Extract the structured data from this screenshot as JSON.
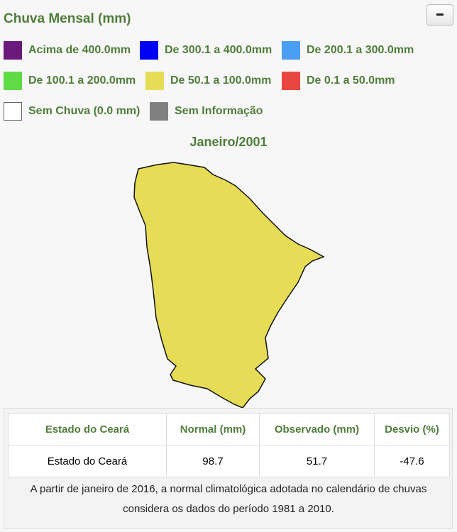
{
  "header": {
    "title": "Chuva Mensal (mm)"
  },
  "legend": [
    {
      "label": "Acima de 400.0mm",
      "color": "#6b1a7c"
    },
    {
      "label": "De 300.1 a 400.0mm",
      "color": "#0000f5"
    },
    {
      "label": "De 200.1 a 300.0mm",
      "color": "#4b9ef3"
    },
    {
      "label": "De 100.1 a 200.0mm",
      "color": "#5fdc45"
    },
    {
      "label": "De 50.1 a 100.0mm",
      "color": "#e6dc55"
    },
    {
      "label": "De 0.1 a 50.0mm",
      "color": "#e8473f"
    },
    {
      "label": "Sem Chuva (0.0 mm)",
      "color": "#ffffff"
    },
    {
      "label": "Sem Informação",
      "color": "#808080"
    }
  ],
  "map": {
    "title": "Janeiro/2001"
  },
  "table": {
    "header": [
      "Estado do Ceará",
      "Normal (mm)",
      "Observado (mm)",
      "Desvio (%)"
    ],
    "rows": [
      [
        "Estado do Ceará",
        98.7,
        51.7,
        -47.6
      ]
    ]
  },
  "footnote": "A partir de janeiro de 2016, a normal climatológica adotada no calendário de chuvas considera os dados do período 1981 a 2010."
}
